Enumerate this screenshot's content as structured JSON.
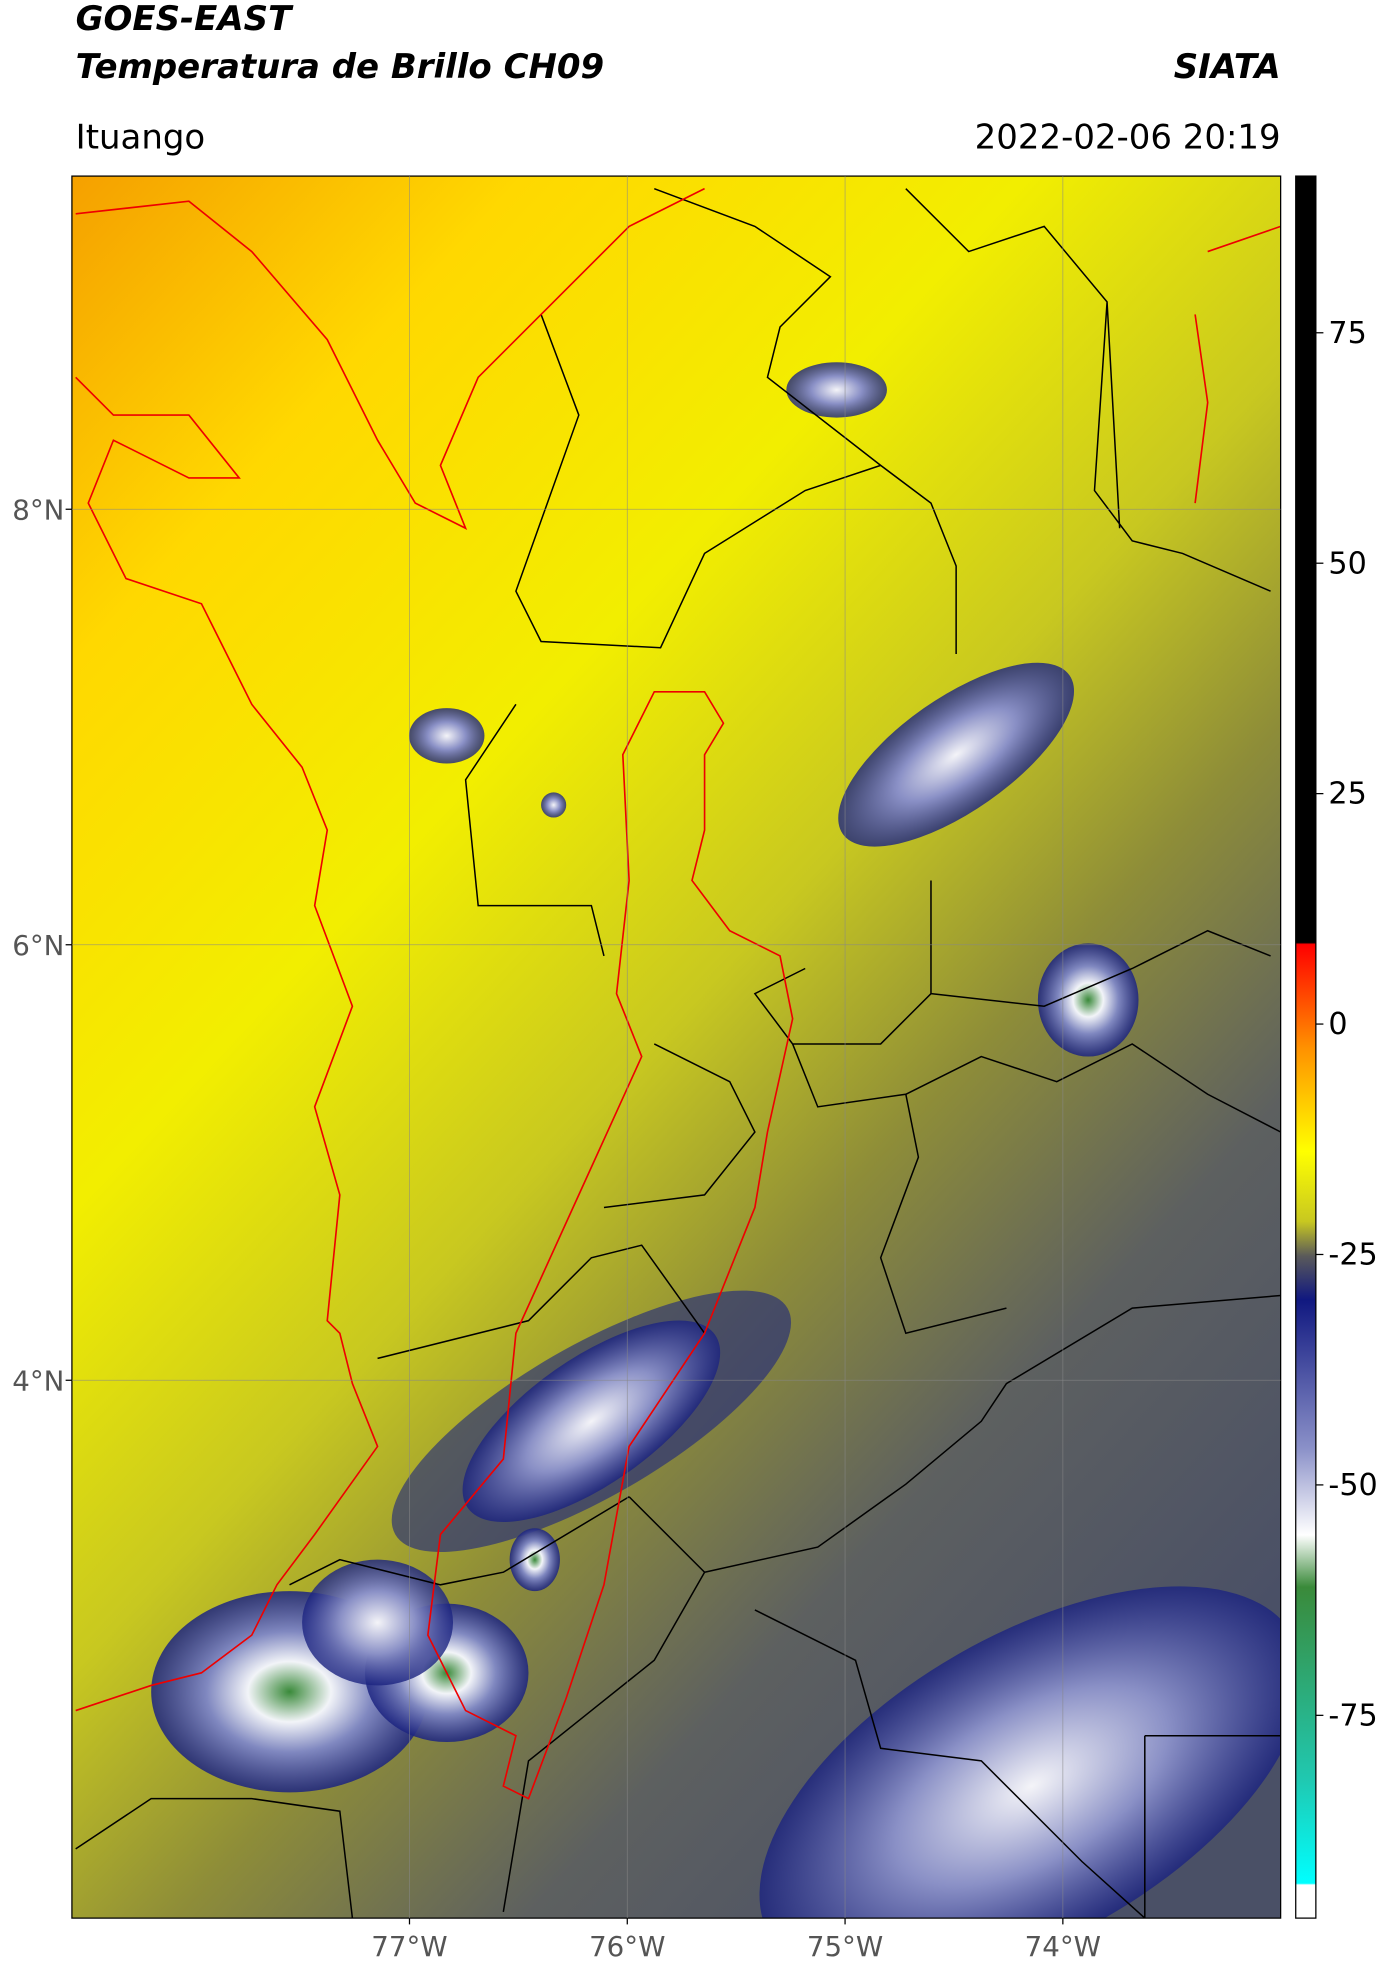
{
  "header": {
    "title": "GOES-EAST",
    "subtitle": "Temperatura de Brillo CH09",
    "agency": "SIATA",
    "location": "Ituango",
    "datetime": "2022-02-06 20:19"
  },
  "map": {
    "xlim": [
      -78.55,
      -73.0
    ],
    "ylim": [
      1.53,
      9.53
    ],
    "lat_ticks": [
      {
        "value": 8,
        "label": "8°N"
      },
      {
        "value": 6,
        "label": "6°N"
      },
      {
        "value": 4,
        "label": "4°N"
      }
    ],
    "lon_ticks": [
      {
        "value": -77,
        "label": "77°W"
      },
      {
        "value": -76,
        "label": "76°W"
      },
      {
        "value": -75,
        "label": "75°W"
      },
      {
        "value": -74,
        "label": "74°W"
      }
    ],
    "grid": true
  },
  "colorbar": {
    "lim": [
      -97,
      92
    ],
    "ticks": [
      75,
      50,
      25,
      0,
      -25,
      -50,
      -75
    ]
  }
}
